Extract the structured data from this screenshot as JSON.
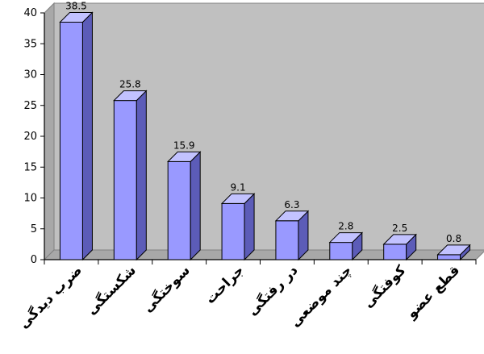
{
  "chart_data": {
    "type": "bar",
    "title": "",
    "xlabel": "",
    "ylabel": "",
    "categories": [
      "ضرب دیدگی",
      "شکستگی",
      "سوختگی",
      "جراحت",
      "در رفتگی",
      "چند موضعی",
      "کوفتگی",
      "قطع عضو"
    ],
    "values": [
      38.5,
      25.8,
      15.9,
      9.1,
      6.3,
      2.8,
      2.5,
      0.8
    ],
    "ylim": [
      0,
      40
    ],
    "ytick_step": 5,
    "grid": false,
    "legend": "none",
    "colors": {
      "bar_front": "#9999ff",
      "bar_side": "#5c5cb8",
      "bar_top": "#c2c2ff",
      "bar_stroke": "#000000",
      "wall": "#c0c0c0",
      "floor": "#a8a8a8",
      "plot_border": "#808080"
    }
  }
}
